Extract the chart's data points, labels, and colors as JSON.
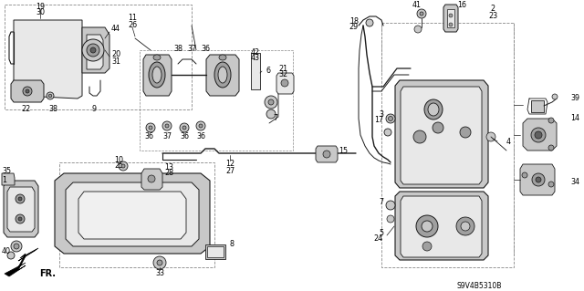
{
  "bg_color": "#ffffff",
  "diagram_code": "S9V4B5310B",
  "line_color": "#1a1a1a",
  "text_color": "#000000",
  "gray_fill": "#c8c8c8",
  "light_gray": "#e8e8e8",
  "mid_gray": "#a0a0a0",
  "dark_gray": "#606060",
  "font_size": 5.8,
  "lw_main": 0.8,
  "lw_thin": 0.5,
  "lw_thick": 1.2
}
